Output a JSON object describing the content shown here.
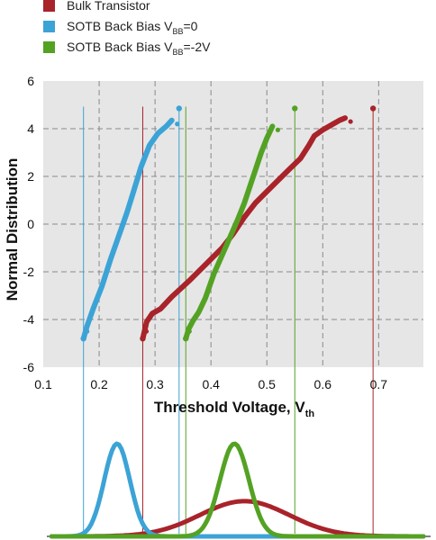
{
  "chart_data": {
    "type": "scatter",
    "xlabel": "Threshold Voltage, V",
    "xlabel_sub": "th",
    "ylabel": "Normal Distribution",
    "xlim": [
      0.1,
      0.78
    ],
    "ylim": [
      -6,
      6
    ],
    "x_ticks": [
      "0.1",
      "0.2",
      "0.3",
      "0.4",
      "0.5",
      "0.6",
      "0.7"
    ],
    "y_ticks": [
      "6",
      "4",
      "2",
      "0",
      "-2",
      "-4",
      "-6"
    ],
    "grid": true,
    "legend_position": "top-left",
    "legend": [
      {
        "text": "Bulk Transistor",
        "sub": "",
        "suffix": "",
        "color": "#a8232a"
      },
      {
        "text": "SOTB Back Bias V",
        "sub": "BB",
        "suffix": "=0",
        "color": "#3ca3d6"
      },
      {
        "text": "SOTB Back Bias V",
        "sub": "BB",
        "suffix": "=-2V",
        "color": "#54a224"
      }
    ],
    "series": [
      {
        "name": "Bulk Transistor",
        "color": "#a8232a",
        "points": [
          [
            0.278,
            -4.8
          ],
          [
            0.285,
            -4.1
          ],
          [
            0.295,
            -3.75
          ],
          [
            0.31,
            -3.55
          ],
          [
            0.33,
            -3.05
          ],
          [
            0.36,
            -2.4
          ],
          [
            0.39,
            -1.7
          ],
          [
            0.42,
            -1.0
          ],
          [
            0.44,
            -0.4
          ],
          [
            0.46,
            0.3
          ],
          [
            0.48,
            0.9
          ],
          [
            0.51,
            1.6
          ],
          [
            0.54,
            2.3
          ],
          [
            0.56,
            2.75
          ],
          [
            0.575,
            3.3
          ],
          [
            0.585,
            3.7
          ],
          [
            0.6,
            3.95
          ],
          [
            0.615,
            4.15
          ],
          [
            0.63,
            4.35
          ],
          [
            0.64,
            4.45
          ]
        ],
        "extremes": [
          0.278,
          0.69
        ],
        "extreme_y": [
          -4.8,
          4.85
        ],
        "dist_mu": 0.46,
        "dist_sigma": 0.08,
        "dist_peak": 0.38
      },
      {
        "name": "SOTB Back Bias VBB=0",
        "color": "#3ca3d6",
        "points": [
          [
            0.172,
            -4.8
          ],
          [
            0.178,
            -4.3
          ],
          [
            0.19,
            -3.5
          ],
          [
            0.205,
            -2.6
          ],
          [
            0.22,
            -1.5
          ],
          [
            0.235,
            -0.5
          ],
          [
            0.25,
            0.5
          ],
          [
            0.262,
            1.4
          ],
          [
            0.275,
            2.4
          ],
          [
            0.29,
            3.3
          ],
          [
            0.305,
            3.8
          ],
          [
            0.32,
            4.1
          ],
          [
            0.33,
            4.35
          ]
        ],
        "extremes": [
          0.172,
          0.343
        ],
        "extreme_y": [
          -4.8,
          4.85
        ],
        "dist_mu": 0.232,
        "dist_sigma": 0.023,
        "dist_peak": 1.0
      },
      {
        "name": "SOTB Back Bias VBB=-2V",
        "color": "#54a224",
        "points": [
          [
            0.355,
            -4.8
          ],
          [
            0.36,
            -4.4
          ],
          [
            0.368,
            -4.05
          ],
          [
            0.378,
            -3.7
          ],
          [
            0.39,
            -3.1
          ],
          [
            0.405,
            -2.1
          ],
          [
            0.42,
            -1.3
          ],
          [
            0.435,
            -0.5
          ],
          [
            0.448,
            0.2
          ],
          [
            0.46,
            0.9
          ],
          [
            0.47,
            1.6
          ],
          [
            0.48,
            2.3
          ],
          [
            0.49,
            3.0
          ],
          [
            0.5,
            3.6
          ],
          [
            0.51,
            4.1
          ]
        ],
        "extremes": [
          0.355,
          0.55
        ],
        "extreme_y": [
          -4.8,
          4.85
        ],
        "dist_mu": 0.442,
        "dist_sigma": 0.026,
        "dist_peak": 1.0
      }
    ]
  }
}
